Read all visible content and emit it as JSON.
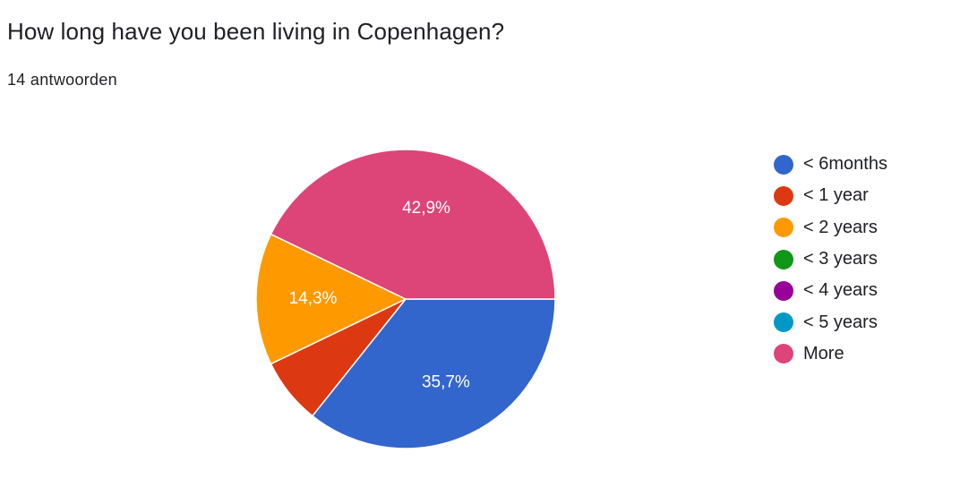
{
  "question": {
    "title": "How long have you been living in Copenhagen?",
    "responses": "14 antwoorden"
  },
  "chart_data": {
    "type": "pie",
    "title": "How long have you been living in Copenhagen?",
    "total_responses": 14,
    "slices": [
      {
        "label": "< 6months",
        "count": 5,
        "percent": 35.7,
        "percent_label": "35,7%",
        "color": "#3366cc",
        "show_label": true
      },
      {
        "label": "< 1 year",
        "count": 1,
        "percent": 7.1,
        "percent_label": "",
        "color": "#dc3912",
        "show_label": false
      },
      {
        "label": "< 2 years",
        "count": 2,
        "percent": 14.3,
        "percent_label": "14,3%",
        "color": "#ff9900",
        "show_label": true
      },
      {
        "label": "< 3 years",
        "count": 0,
        "percent": 0,
        "percent_label": "",
        "color": "#109618",
        "show_label": false
      },
      {
        "label": "< 4 years",
        "count": 0,
        "percent": 0,
        "percent_label": "",
        "color": "#990099",
        "show_label": false
      },
      {
        "label": "< 5 years",
        "count": 0,
        "percent": 0,
        "percent_label": "",
        "color": "#0099c6",
        "show_label": false
      },
      {
        "label": "More",
        "count": 6,
        "percent": 42.9,
        "percent_label": "42,9%",
        "color": "#dd4477",
        "show_label": true
      }
    ],
    "legend_position": "right"
  }
}
